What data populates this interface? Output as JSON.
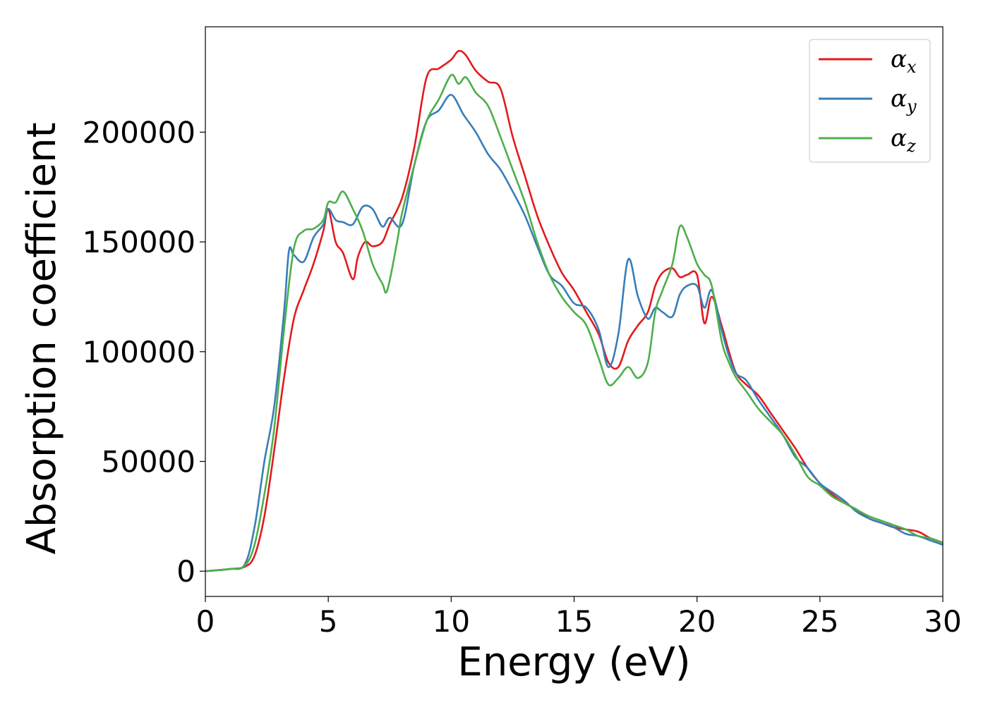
{
  "chart_data": {
    "type": "line",
    "title": "",
    "xlabel": "Energy (eV)",
    "ylabel": "Absorption coefficient",
    "xlim": [
      0,
      30
    ],
    "ylim": [
      -11500,
      248000
    ],
    "x_ticks": [
      "0",
      "5",
      "10",
      "15",
      "20",
      "25",
      "30"
    ],
    "y_ticks": [
      "0",
      "50000",
      "100000",
      "150000",
      "200000"
    ],
    "x_tick_values": [
      0,
      5,
      10,
      15,
      20,
      25,
      30
    ],
    "y_tick_values": [
      0,
      50000,
      100000,
      150000,
      200000
    ],
    "grid": false,
    "legend_position": "top-right",
    "series": [
      {
        "name": "α_x",
        "label_main": "α",
        "label_sub": "x",
        "color": "#e41a1c",
        "x": [
          0,
          1,
          1.6,
          2.0,
          2.4,
          2.8,
          3.2,
          3.6,
          4.0,
          4.4,
          4.8,
          5.0,
          5.3,
          5.6,
          6.0,
          6.2,
          6.5,
          6.8,
          7.2,
          7.5,
          8.0,
          8.5,
          9.0,
          9.5,
          10.0,
          10.3,
          10.6,
          11.0,
          11.5,
          12.0,
          12.5,
          13.0,
          13.5,
          14.0,
          14.5,
          15.0,
          15.5,
          16.0,
          16.4,
          16.8,
          17.2,
          17.6,
          18.0,
          18.3,
          18.6,
          19.0,
          19.3,
          19.6,
          20.0,
          20.3,
          20.6,
          21.0,
          21.3,
          21.6,
          22.0,
          22.5,
          23.0,
          23.5,
          24.0,
          24.5,
          25.0,
          25.5,
          26.0,
          26.5,
          27.0,
          27.5,
          28.0,
          28.5,
          29.0,
          29.5,
          30.0
        ],
        "y": [
          0,
          1000,
          2000,
          7000,
          25000,
          55000,
          88000,
          115000,
          128000,
          140000,
          155000,
          165000,
          150000,
          145000,
          133000,
          143000,
          150000,
          148000,
          150000,
          158000,
          170000,
          193000,
          225000,
          229000,
          233000,
          237000,
          235000,
          228000,
          223000,
          220000,
          198000,
          180000,
          162000,
          148000,
          136000,
          128000,
          118000,
          108000,
          95000,
          93000,
          105000,
          112000,
          118000,
          130000,
          136000,
          138000,
          134000,
          135000,
          135000,
          113000,
          125000,
          112000,
          100000,
          90000,
          85000,
          80000,
          72000,
          64000,
          56000,
          47000,
          40000,
          35000,
          31000,
          28000,
          24000,
          22000,
          20000,
          19000,
          18000,
          15000,
          13000
        ]
      },
      {
        "name": "α_y",
        "label_main": "α",
        "label_sub": "y",
        "color": "#377eb8",
        "x": [
          0,
          1,
          1.6,
          2.0,
          2.4,
          2.8,
          3.2,
          3.4,
          3.6,
          4.0,
          4.4,
          4.8,
          5.0,
          5.3,
          5.6,
          6.0,
          6.4,
          6.8,
          7.2,
          7.5,
          8.0,
          8.5,
          9.0,
          9.5,
          10.0,
          10.5,
          11.0,
          11.5,
          12.0,
          12.5,
          13.0,
          13.5,
          14.0,
          14.5,
          15.0,
          15.5,
          16.0,
          16.4,
          16.8,
          17.2,
          17.6,
          18.0,
          18.3,
          18.6,
          19.0,
          19.3,
          19.6,
          20.0,
          20.3,
          20.6,
          21.0,
          21.3,
          21.6,
          22.0,
          22.5,
          23.0,
          23.5,
          24.0,
          24.5,
          25.0,
          25.5,
          26.0,
          26.5,
          27.0,
          27.5,
          28.0,
          28.5,
          29.0,
          29.5,
          30.0
        ],
        "y": [
          0,
          1000,
          3000,
          20000,
          50000,
          75000,
          118000,
          146000,
          144000,
          141000,
          152000,
          158000,
          165000,
          160000,
          159000,
          158000,
          166000,
          165000,
          157000,
          161000,
          158000,
          185000,
          205000,
          210000,
          217000,
          208000,
          200000,
          190000,
          183000,
          173000,
          162000,
          148000,
          135000,
          130000,
          122000,
          120000,
          110000,
          93000,
          108000,
          142000,
          125000,
          115000,
          120000,
          118000,
          116000,
          126000,
          130000,
          130000,
          120000,
          128000,
          110000,
          98000,
          90000,
          87000,
          78000,
          70000,
          62000,
          52000,
          47000,
          40000,
          36000,
          32000,
          27000,
          24000,
          22000,
          20000,
          17000,
          16000,
          14000,
          12000
        ]
      },
      {
        "name": "α_z",
        "label_main": "α",
        "label_sub": "z",
        "color": "#4daf4a",
        "x": [
          0,
          1,
          1.6,
          2.0,
          2.4,
          2.8,
          3.2,
          3.6,
          4.0,
          4.4,
          4.8,
          5.0,
          5.3,
          5.6,
          6.0,
          6.4,
          6.8,
          7.2,
          7.4,
          7.8,
          8.0,
          8.5,
          9.0,
          9.5,
          10.0,
          10.3,
          10.6,
          11.0,
          11.5,
          12.0,
          12.5,
          13.0,
          13.5,
          14.0,
          14.5,
          15.0,
          15.5,
          16.0,
          16.4,
          16.8,
          17.2,
          17.6,
          18.0,
          18.3,
          18.6,
          19.0,
          19.3,
          19.6,
          20.0,
          20.3,
          20.6,
          21.0,
          21.3,
          21.6,
          22.0,
          22.5,
          23.0,
          23.5,
          24.0,
          24.5,
          25.0,
          25.5,
          26.0,
          26.5,
          27.0,
          27.5,
          28.0,
          28.5,
          29.0,
          29.5,
          30.0
        ],
        "y": [
          0,
          1000,
          2500,
          12000,
          35000,
          65000,
          110000,
          147000,
          155000,
          156000,
          160000,
          168000,
          168000,
          173000,
          165000,
          155000,
          140000,
          131000,
          128000,
          150000,
          163000,
          185000,
          205000,
          215000,
          226000,
          222000,
          225000,
          218000,
          212000,
          198000,
          183000,
          168000,
          150000,
          135000,
          125000,
          118000,
          112000,
          97000,
          85000,
          88000,
          93000,
          88000,
          95000,
          118000,
          128000,
          140000,
          157000,
          152000,
          140000,
          135000,
          130000,
          105000,
          95000,
          88000,
          82000,
          74000,
          68000,
          62000,
          53000,
          43000,
          39000,
          34000,
          31000,
          28000,
          25000,
          23000,
          21000,
          19000,
          16000,
          15000,
          13000
        ]
      }
    ]
  }
}
